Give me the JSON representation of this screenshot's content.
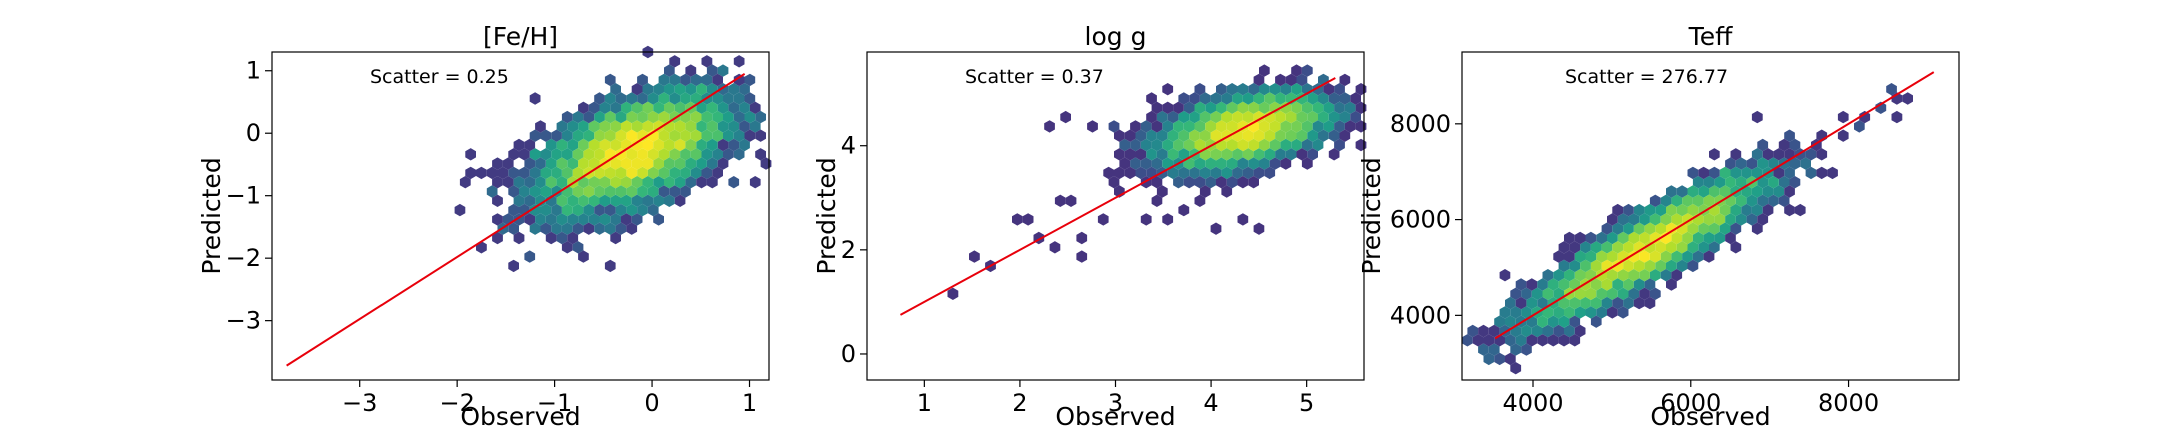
{
  "chart_data": [
    {
      "type": "scatter",
      "title": "[Fe/H]",
      "xlabel": "Observed",
      "ylabel": "Predicted",
      "xlim": [
        -3.9,
        1.2
      ],
      "ylim": [
        -3.95,
        1.3
      ],
      "xticks": [
        -3,
        -2,
        -1,
        0,
        1
      ],
      "yticks": [
        -3,
        -2,
        -1,
        0,
        1
      ],
      "xtick_labels": [
        "−3",
        "−2",
        "−1",
        "0",
        "1"
      ],
      "ytick_labels": [
        "−3",
        "−2",
        "−1",
        "0",
        "1"
      ],
      "annotation": "Scatter = 0.25",
      "grid": false,
      "fit_line": {
        "x": [
          -3.75,
          0.95
        ],
        "y": [
          -3.72,
          0.95
        ],
        "color": "#e8000b"
      },
      "hexbin": {
        "colormap": "viridis",
        "center": [
          -0.2,
          -0.3
        ],
        "spread": [
          0.48,
          0.48
        ],
        "corr": 0.55,
        "outliers": [
          [
            -1.85,
            -0.65
          ],
          [
            -1.7,
            -0.65
          ],
          [
            -1.1,
            -1.15
          ],
          [
            -1.4,
            -2.05
          ],
          [
            0.5,
            0.05
          ],
          [
            -0.9,
            -1.3
          ],
          [
            -0.4,
            -1.5
          ],
          [
            -0.1,
            -1.45
          ],
          [
            0.3,
            0.4
          ],
          [
            -1.55,
            -0.45
          ]
        ]
      }
    },
    {
      "type": "scatter",
      "title": "log g",
      "xlabel": "Observed",
      "ylabel": "Predicted",
      "xlim": [
        0.4,
        5.6
      ],
      "ylim": [
        -0.5,
        5.8
      ],
      "xticks": [
        1,
        2,
        3,
        4,
        5
      ],
      "yticks": [
        0,
        2,
        4
      ],
      "xtick_labels": [
        "1",
        "2",
        "3",
        "4",
        "5"
      ],
      "ytick_labels": [
        "0",
        "2",
        "4"
      ],
      "annotation": "Scatter = 0.37",
      "grid": false,
      "fit_line": {
        "x": [
          0.75,
          5.3
        ],
        "y": [
          0.75,
          5.3
        ],
        "color": "#e8000b"
      },
      "hexbin": {
        "colormap": "viridis",
        "center": [
          4.35,
          4.3
        ],
        "spread": [
          0.42,
          0.35
        ],
        "corr": 0.45,
        "outliers": [
          [
            1.35,
            1.15
          ],
          [
            1.5,
            1.9
          ],
          [
            1.65,
            1.75
          ],
          [
            1.95,
            2.65
          ],
          [
            2.2,
            2.2
          ],
          [
            2.35,
            2.0
          ],
          [
            2.5,
            2.9
          ],
          [
            2.7,
            2.3
          ],
          [
            2.85,
            2.6
          ],
          [
            2.6,
            1.95
          ],
          [
            2.3,
            4.3
          ],
          [
            2.5,
            4.6
          ],
          [
            2.8,
            4.3
          ],
          [
            2.9,
            3.5
          ],
          [
            3.05,
            3.2
          ],
          [
            3.2,
            4.0
          ],
          [
            3.35,
            2.6
          ],
          [
            3.0,
            4.4
          ],
          [
            3.5,
            3.2
          ],
          [
            3.6,
            2.6
          ],
          [
            3.75,
            2.8
          ],
          [
            3.9,
            3.0
          ],
          [
            4.1,
            2.4
          ],
          [
            4.3,
            2.5
          ],
          [
            4.45,
            2.45
          ],
          [
            2.4,
            3.0
          ],
          [
            3.3,
            3.6
          ],
          [
            2.1,
            2.55
          ],
          [
            3.45,
            2.9
          ],
          [
            4.0,
            3.3
          ]
        ]
      }
    },
    {
      "type": "scatter",
      "title": "Teff",
      "xlabel": "Observed",
      "ylabel": "Predicted",
      "xlim": [
        3100,
        9400
      ],
      "ylim": [
        2650,
        9500
      ],
      "xticks": [
        4000,
        6000,
        8000
      ],
      "yticks": [
        4000,
        6000,
        8000
      ],
      "xtick_labels": [
        "4000",
        "6000",
        "8000"
      ],
      "ytick_labels": [
        "4000",
        "6000",
        "8000"
      ],
      "annotation": "Scatter = 276.77",
      "grid": false,
      "fit_line": {
        "x": [
          3520,
          9080
        ],
        "y": [
          3520,
          9080
        ],
        "color": "#e8000b"
      },
      "hexbin": {
        "colormap": "viridis",
        "center": [
          5450,
          5400
        ],
        "spread": [
          750,
          780
        ],
        "corr": 0.9,
        "outliers": [
          [
            8250,
            8050
          ],
          [
            8350,
            8250
          ],
          [
            8550,
            8700
          ],
          [
            8650,
            8450
          ],
          [
            8750,
            8600
          ],
          [
            8600,
            8650
          ],
          [
            8450,
            8400
          ],
          [
            7950,
            7750
          ],
          [
            7450,
            7250
          ],
          [
            7300,
            6800
          ]
        ]
      }
    }
  ]
}
